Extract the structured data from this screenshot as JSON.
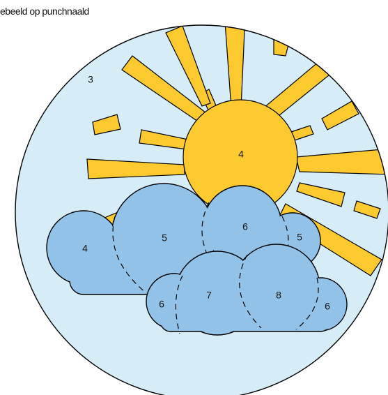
{
  "caption": "ebeeld op punchnaald",
  "regions": [
    {
      "label": "3"
    },
    {
      "label": "4"
    },
    {
      "label": "4"
    },
    {
      "label": "5"
    },
    {
      "label": "6"
    },
    {
      "label": "5"
    },
    {
      "label": "6"
    },
    {
      "label": "7"
    },
    {
      "label": "8"
    },
    {
      "label": "6"
    }
  ]
}
